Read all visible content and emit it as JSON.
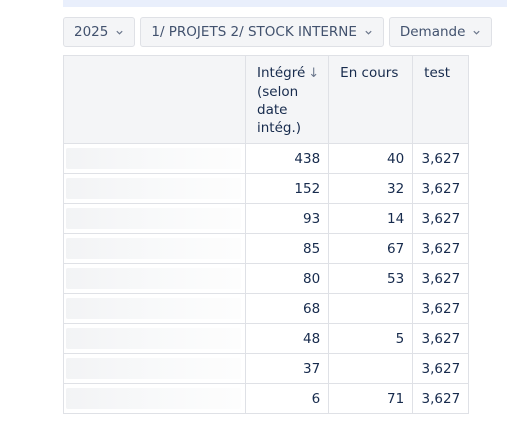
{
  "filters": [
    {
      "label": "2025"
    },
    {
      "label": "1/ PROJETS 2/ STOCK INTERNE"
    },
    {
      "label": "Demande"
    }
  ],
  "table": {
    "headers": {
      "integre": "Intégré",
      "integre_sub": [
        "(selon",
        "date",
        "intég.)"
      ],
      "sort_icon": "↓",
      "en_cours": "En cours",
      "test": "test"
    },
    "rows": [
      {
        "integre": "438",
        "en_cours": "40",
        "test": "3,627"
      },
      {
        "integre": "152",
        "en_cours": "32",
        "test": "3,627"
      },
      {
        "integre": "93",
        "en_cours": "14",
        "test": "3,627"
      },
      {
        "integre": "85",
        "en_cours": "67",
        "test": "3,627"
      },
      {
        "integre": "80",
        "en_cours": "53",
        "test": "3,627"
      },
      {
        "integre": "68",
        "en_cours": "",
        "test": "3,627"
      },
      {
        "integre": "48",
        "en_cours": "5",
        "test": "3,627"
      },
      {
        "integre": "37",
        "en_cours": "",
        "test": "3,627"
      },
      {
        "integre": "6",
        "en_cours": "71",
        "test": "3,627"
      }
    ]
  },
  "icons": {
    "filter_dropdown": "chevron-down-icon",
    "sort": "arrow-down-icon"
  },
  "colors": {
    "header_bg": "#f4f5f7",
    "border": "#dfe1e6",
    "text": "#172b4d"
  }
}
